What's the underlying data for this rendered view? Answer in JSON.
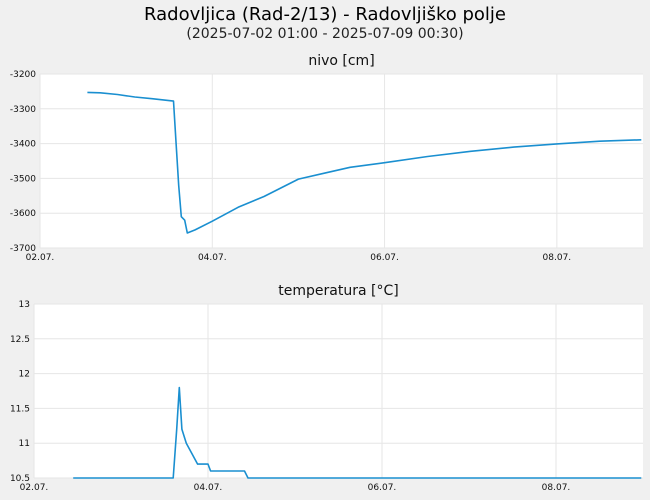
{
  "header": {
    "title": "Radovljica (Rad-2/13) - Radovljiško polje",
    "subtitle": "(2025-07-02 01:00 - 2025-07-09 00:30)"
  },
  "chart_data": [
    {
      "type": "line",
      "title": "nivo [cm]",
      "xlabel": "",
      "ylabel": "",
      "xlim": [
        2.0,
        9.0
      ],
      "ylim": [
        -3700,
        -3200
      ],
      "x_ticks": [
        {
          "value": 2.0,
          "label": "02.07."
        },
        {
          "value": 4.0,
          "label": "04.07."
        },
        {
          "value": 6.0,
          "label": "06.07."
        },
        {
          "value": 8.0,
          "label": "08.07."
        }
      ],
      "y_ticks": [
        {
          "value": -3200,
          "label": "-3200"
        },
        {
          "value": -3300,
          "label": "-3300"
        },
        {
          "value": -3400,
          "label": "-3400"
        },
        {
          "value": -3500,
          "label": "-3500"
        },
        {
          "value": -3600,
          "label": "-3600"
        },
        {
          "value": -3700,
          "label": "-3700"
        }
      ],
      "grid": true,
      "color": "#1a8fd0",
      "series": [
        {
          "values": [
            {
              "x": 2.55,
              "y": -3253
            },
            {
              "x": 2.7,
              "y": -3254
            },
            {
              "x": 2.9,
              "y": -3259
            },
            {
              "x": 3.1,
              "y": -3266
            },
            {
              "x": 3.3,
              "y": -3271
            },
            {
              "x": 3.55,
              "y": -3278
            },
            {
              "x": 3.58,
              "y": -3400
            },
            {
              "x": 3.61,
              "y": -3520
            },
            {
              "x": 3.64,
              "y": -3610
            },
            {
              "x": 3.68,
              "y": -3620
            },
            {
              "x": 3.71,
              "y": -3657
            },
            {
              "x": 3.8,
              "y": -3648
            },
            {
              "x": 4.0,
              "y": -3623
            },
            {
              "x": 4.3,
              "y": -3583
            },
            {
              "x": 4.6,
              "y": -3552
            },
            {
              "x": 5.0,
              "y": -3502
            },
            {
              "x": 5.3,
              "y": -3485
            },
            {
              "x": 5.6,
              "y": -3468
            },
            {
              "x": 6.0,
              "y": -3455
            },
            {
              "x": 6.5,
              "y": -3437
            },
            {
              "x": 7.0,
              "y": -3422
            },
            {
              "x": 7.5,
              "y": -3410
            },
            {
              "x": 8.0,
              "y": -3401
            },
            {
              "x": 8.5,
              "y": -3393
            },
            {
              "x": 8.98,
              "y": -3389
            }
          ]
        }
      ]
    },
    {
      "type": "line",
      "title": "temperatura [°C]",
      "xlabel": "",
      "ylabel": "",
      "xlim": [
        2.0,
        9.0
      ],
      "ylim": [
        10.5,
        13
      ],
      "x_ticks": [
        {
          "value": 2.0,
          "label": "02.07."
        },
        {
          "value": 4.0,
          "label": "04.07."
        },
        {
          "value": 6.0,
          "label": "06.07."
        },
        {
          "value": 8.0,
          "label": "08.07."
        }
      ],
      "y_ticks": [
        {
          "value": 10.5,
          "label": "10.5"
        },
        {
          "value": 11,
          "label": "11"
        },
        {
          "value": 11.5,
          "label": "11.5"
        },
        {
          "value": 12,
          "label": "12"
        },
        {
          "value": 12.5,
          "label": "12.5"
        },
        {
          "value": 13,
          "label": "13"
        }
      ],
      "grid": true,
      "color": "#1a8fd0",
      "series": [
        {
          "values": [
            {
              "x": 2.45,
              "y": 10.5
            },
            {
              "x": 3.6,
              "y": 10.5
            },
            {
              "x": 3.64,
              "y": 11.2
            },
            {
              "x": 3.67,
              "y": 11.8
            },
            {
              "x": 3.7,
              "y": 11.2
            },
            {
              "x": 3.75,
              "y": 11.0
            },
            {
              "x": 3.88,
              "y": 10.7
            },
            {
              "x": 4.0,
              "y": 10.7
            },
            {
              "x": 4.03,
              "y": 10.6
            },
            {
              "x": 4.42,
              "y": 10.6
            },
            {
              "x": 4.46,
              "y": 10.5
            },
            {
              "x": 8.98,
              "y": 10.5
            }
          ]
        }
      ]
    }
  ]
}
